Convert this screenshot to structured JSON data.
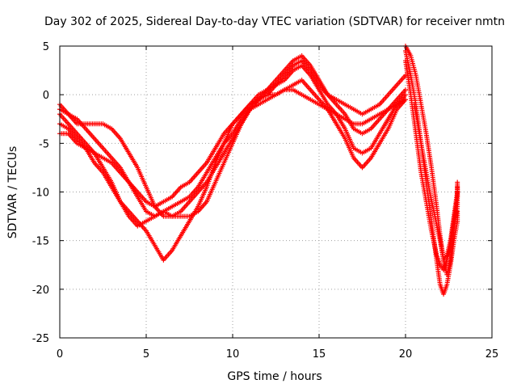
{
  "chart_data": {
    "type": "scatter",
    "title": "Day 302 of 2025, Sidereal Day-to-day VTEC variation (SDTVAR) for receiver nmtn",
    "xlabel": "GPS time / hours",
    "ylabel": "SDTVAR / TECUs",
    "xlim": [
      0,
      25
    ],
    "ylim": [
      -25,
      5
    ],
    "xticks": [
      "0",
      "5",
      "10",
      "15",
      "20",
      "25"
    ],
    "yticks": [
      "5",
      "0",
      "-5",
      "-10",
      "-15",
      "-20",
      "-25"
    ],
    "grid": true,
    "marker": "+",
    "color": "#ff0000",
    "series": [
      {
        "points": [
          [
            0,
            -1
          ],
          [
            0.5,
            -2
          ],
          [
            1,
            -2.5
          ],
          [
            1.5,
            -3.5
          ],
          [
            2,
            -4.5
          ],
          [
            2.5,
            -5.5
          ],
          [
            3,
            -6.5
          ],
          [
            3.5,
            -7.5
          ],
          [
            4,
            -9
          ],
          [
            4.5,
            -10.5
          ],
          [
            5,
            -12
          ],
          [
            5.5,
            -12.5
          ],
          [
            6,
            -12
          ],
          [
            6.5,
            -11.5
          ],
          [
            7,
            -11
          ],
          [
            7.5,
            -10.5
          ],
          [
            8,
            -9.5
          ],
          [
            8.5,
            -8
          ],
          [
            9,
            -6.5
          ],
          [
            9.5,
            -5
          ],
          [
            10,
            -3
          ],
          [
            10.5,
            -2
          ],
          [
            11,
            -1
          ],
          [
            11.5,
            0
          ],
          [
            12,
            0.5
          ],
          [
            12.5,
            1.5
          ],
          [
            13,
            2.5
          ],
          [
            13.5,
            3.5
          ],
          [
            14,
            4
          ],
          [
            14.5,
            3
          ],
          [
            15,
            1.5
          ],
          [
            15.5,
            0
          ],
          [
            16,
            -1
          ],
          [
            16.5,
            -2
          ],
          [
            17,
            -3.5
          ],
          [
            17.5,
            -4
          ],
          [
            18,
            -3.5
          ],
          [
            18.5,
            -2.5
          ],
          [
            19,
            -1.5
          ],
          [
            19.5,
            -0.5
          ],
          [
            20,
            0.5
          ]
        ]
      },
      {
        "points": [
          [
            0,
            -2
          ],
          [
            0.5,
            -3
          ],
          [
            1,
            -4
          ],
          [
            1.5,
            -5
          ],
          [
            2,
            -6
          ],
          [
            2.5,
            -7.5
          ],
          [
            3,
            -9
          ],
          [
            3.5,
            -11
          ],
          [
            4,
            -12.5
          ],
          [
            4.5,
            -13.5
          ],
          [
            5,
            -13
          ],
          [
            5.5,
            -12.5
          ],
          [
            6,
            -12
          ],
          [
            6.5,
            -12.5
          ],
          [
            7,
            -12.5
          ],
          [
            7.5,
            -12.5
          ],
          [
            8,
            -12
          ],
          [
            8.5,
            -11
          ],
          [
            9,
            -9
          ],
          [
            9.5,
            -7
          ],
          [
            10,
            -5
          ],
          [
            10.5,
            -3
          ],
          [
            11,
            -1.5
          ],
          [
            11.5,
            -0.5
          ],
          [
            12,
            0
          ],
          [
            12.5,
            1
          ],
          [
            13,
            1.5
          ],
          [
            13.5,
            2.5
          ],
          [
            14,
            3
          ],
          [
            14.5,
            2
          ],
          [
            15,
            0.5
          ],
          [
            15.5,
            -1
          ],
          [
            16,
            -2
          ],
          [
            16.5,
            -3.5
          ],
          [
            17,
            -5.5
          ],
          [
            17.5,
            -6
          ],
          [
            18,
            -5.5
          ],
          [
            18.5,
            -4
          ],
          [
            19,
            -2.5
          ],
          [
            19.5,
            -1
          ],
          [
            20,
            0
          ]
        ]
      },
      {
        "points": [
          [
            0,
            -3
          ],
          [
            0.5,
            -3.5
          ],
          [
            1,
            -4.5
          ],
          [
            1.5,
            -5.5
          ],
          [
            2,
            -7
          ],
          [
            2.5,
            -8
          ],
          [
            3,
            -9.5
          ],
          [
            3.5,
            -11
          ],
          [
            4,
            -12
          ],
          [
            4.5,
            -13
          ],
          [
            5,
            -14
          ],
          [
            5.5,
            -15.5
          ],
          [
            6,
            -17
          ],
          [
            6.5,
            -16
          ],
          [
            7,
            -14.5
          ],
          [
            7.5,
            -13
          ],
          [
            8,
            -11.5
          ],
          [
            8.5,
            -9.5
          ],
          [
            9,
            -7
          ],
          [
            9.5,
            -5
          ],
          [
            10,
            -4
          ],
          [
            10.5,
            -2.5
          ],
          [
            11,
            -1.5
          ],
          [
            11.5,
            -1
          ],
          [
            12,
            -0.5
          ],
          [
            12.5,
            0
          ],
          [
            13,
            0.5
          ],
          [
            13.5,
            1
          ],
          [
            14,
            1.5
          ],
          [
            14.5,
            0.5
          ],
          [
            15,
            -0.5
          ],
          [
            15.5,
            -1.5
          ],
          [
            16,
            -3
          ],
          [
            16.5,
            -4.5
          ],
          [
            17,
            -6.5
          ],
          [
            17.5,
            -7.5
          ],
          [
            18,
            -6.5
          ],
          [
            18.5,
            -5
          ],
          [
            19,
            -3.5
          ],
          [
            19.5,
            -1.5
          ],
          [
            20,
            -0.5
          ]
        ]
      },
      {
        "points": [
          [
            0,
            -4
          ],
          [
            0.5,
            -4
          ],
          [
            1,
            -5
          ],
          [
            1.5,
            -5.5
          ],
          [
            2,
            -6
          ],
          [
            2.5,
            -6.5
          ],
          [
            3,
            -7
          ],
          [
            3.5,
            -8
          ],
          [
            4,
            -9
          ],
          [
            4.5,
            -10
          ],
          [
            5,
            -11
          ],
          [
            5.5,
            -11.5
          ],
          [
            6,
            -11
          ],
          [
            6.5,
            -10.5
          ],
          [
            7,
            -9.5
          ],
          [
            7.5,
            -9
          ],
          [
            8,
            -8
          ],
          [
            8.5,
            -7
          ],
          [
            9,
            -5.5
          ],
          [
            9.5,
            -4
          ],
          [
            10,
            -3
          ],
          [
            10.5,
            -2
          ],
          [
            11,
            -1
          ],
          [
            11.5,
            -0.5
          ],
          [
            12,
            0
          ],
          [
            12.5,
            0
          ],
          [
            13,
            0.5
          ],
          [
            13.5,
            0.5
          ],
          [
            14,
            0
          ],
          [
            14.5,
            -0.5
          ],
          [
            15,
            -1
          ],
          [
            15.5,
            -1.5
          ],
          [
            16,
            -2
          ],
          [
            16.5,
            -2.5
          ],
          [
            17,
            -3
          ],
          [
            17.5,
            -3
          ],
          [
            18,
            -2.5
          ],
          [
            18.5,
            -2
          ],
          [
            19,
            -1.5
          ],
          [
            19.5,
            -1
          ],
          [
            20,
            -0.5
          ]
        ]
      },
      {
        "points": [
          [
            0,
            -1.5
          ],
          [
            0.5,
            -2
          ],
          [
            1,
            -3
          ],
          [
            1.5,
            -3
          ],
          [
            2,
            -3
          ],
          [
            2.5,
            -3
          ],
          [
            3,
            -3.5
          ],
          [
            3.5,
            -4.5
          ],
          [
            4,
            -6
          ],
          [
            4.5,
            -7.5
          ],
          [
            5,
            -9.5
          ],
          [
            5.5,
            -11.5
          ],
          [
            6,
            -12.5
          ],
          [
            6.5,
            -12.5
          ],
          [
            7,
            -12
          ],
          [
            7.5,
            -11
          ],
          [
            8,
            -10
          ],
          [
            8.5,
            -9
          ],
          [
            9,
            -7.5
          ],
          [
            9.5,
            -6
          ],
          [
            10,
            -4.5
          ],
          [
            10.5,
            -3
          ],
          [
            11,
            -1.5
          ],
          [
            11.5,
            -0.5
          ],
          [
            12,
            0.5
          ],
          [
            12.5,
            1
          ],
          [
            13,
            2
          ],
          [
            13.5,
            3
          ],
          [
            14,
            3.5
          ],
          [
            14.5,
            2.5
          ],
          [
            15,
            1
          ],
          [
            15.5,
            0
          ],
          [
            16,
            -0.5
          ],
          [
            16.5,
            -1
          ],
          [
            17,
            -1.5
          ],
          [
            17.5,
            -2
          ],
          [
            18,
            -1.5
          ],
          [
            18.5,
            -1
          ],
          [
            19,
            0
          ],
          [
            19.5,
            1
          ],
          [
            20,
            2
          ]
        ]
      },
      {
        "points": [
          [
            20,
            5
          ],
          [
            20.3,
            4
          ],
          [
            20.6,
            2
          ],
          [
            20.9,
            -1
          ],
          [
            21.2,
            -4
          ],
          [
            21.5,
            -7.5
          ],
          [
            21.8,
            -11.5
          ],
          [
            22.0,
            -14.5
          ],
          [
            22.2,
            -17
          ],
          [
            22.4,
            -18.5
          ],
          [
            22.6,
            -17
          ],
          [
            22.8,
            -14
          ],
          [
            23,
            -11.5
          ],
          [
            23,
            -9.5
          ]
        ]
      },
      {
        "points": [
          [
            20,
            4.5
          ],
          [
            20.3,
            2
          ],
          [
            20.6,
            -1
          ],
          [
            20.9,
            -5
          ],
          [
            21.2,
            -9
          ],
          [
            21.5,
            -13
          ],
          [
            21.8,
            -17
          ],
          [
            22.0,
            -19.5
          ],
          [
            22.2,
            -20.5
          ],
          [
            22.4,
            -19.5
          ],
          [
            22.6,
            -17.5
          ],
          [
            22.8,
            -15
          ],
          [
            23,
            -13
          ],
          [
            23,
            -12
          ]
        ]
      },
      {
        "points": [
          [
            20,
            3.5
          ],
          [
            20.3,
            0
          ],
          [
            20.6,
            -4
          ],
          [
            20.9,
            -8
          ],
          [
            21.2,
            -11
          ],
          [
            21.5,
            -14
          ],
          [
            21.8,
            -16.5
          ],
          [
            22.0,
            -17.5
          ],
          [
            22.2,
            -18
          ],
          [
            22.4,
            -17
          ],
          [
            22.6,
            -15.5
          ],
          [
            22.8,
            -13
          ],
          [
            23,
            -10.5
          ],
          [
            23,
            -9
          ]
        ]
      },
      {
        "points": [
          [
            20.5,
            -1
          ],
          [
            20.8,
            -4
          ],
          [
            21.1,
            -7
          ],
          [
            21.4,
            -10
          ],
          [
            21.7,
            -12.5
          ],
          [
            22.0,
            -15
          ],
          [
            22.2,
            -17
          ],
          [
            22.4,
            -16.5
          ],
          [
            22.6,
            -15
          ],
          [
            22.8,
            -12.5
          ],
          [
            23,
            -10
          ]
        ]
      }
    ]
  }
}
